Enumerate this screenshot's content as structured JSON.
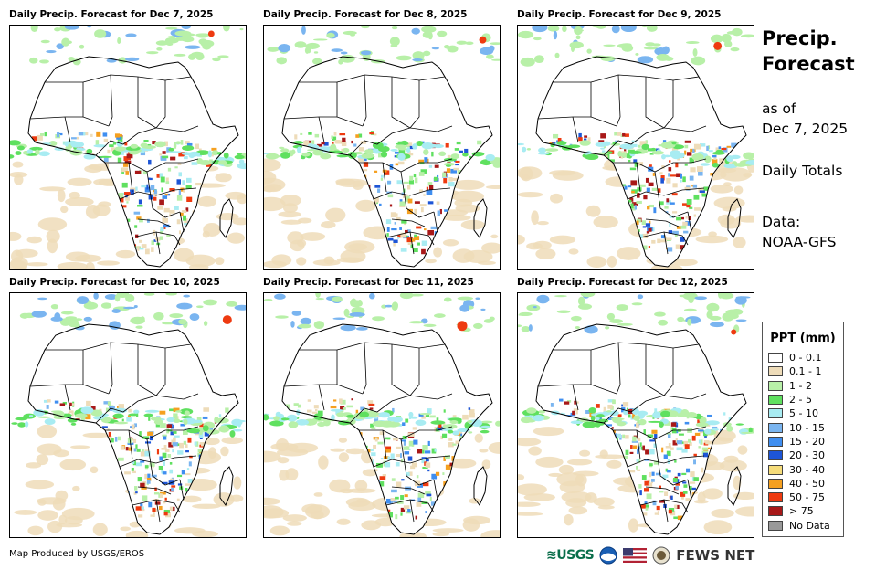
{
  "panels": [
    {
      "title": "Daily Precip. Forecast for Dec 7, 2025"
    },
    {
      "title": "Daily Precip. Forecast for Dec 8, 2025"
    },
    {
      "title": "Daily Precip. Forecast for Dec 9, 2025"
    },
    {
      "title": "Daily Precip. Forecast for Dec 10, 2025"
    },
    {
      "title": "Daily Precip. Forecast for Dec 11, 2025"
    },
    {
      "title": "Daily Precip. Forecast for Dec 12, 2025"
    }
  ],
  "side": {
    "title_line1": "Precip.",
    "title_line2": "Forecast",
    "asof_line1": "as of",
    "asof_line2": "Dec 7, 2025",
    "totals": "Daily Totals",
    "data_line1": "Data:",
    "data_line2": "NOAA-GFS"
  },
  "legend": {
    "title": "PPT (mm)",
    "items": [
      {
        "label": "0 - 0.1",
        "color": "#ffffff"
      },
      {
        "label": "0.1 - 1",
        "color": "#eedcb9"
      },
      {
        "label": "1 - 2",
        "color": "#b8f0a8"
      },
      {
        "label": "2 - 5",
        "color": "#5fe05f"
      },
      {
        "label": "5 - 10",
        "color": "#a8ecf2"
      },
      {
        "label": "10 - 15",
        "color": "#7ab5f0"
      },
      {
        "label": "15 - 20",
        "color": "#3f8ef0"
      },
      {
        "label": "20 - 30",
        "color": "#1d55d6"
      },
      {
        "label": "30 - 40",
        "color": "#f5dc7a"
      },
      {
        "label": "40 - 50",
        "color": "#f5a020"
      },
      {
        "label": "50 - 75",
        "color": "#ee3a10"
      },
      {
        "label": "> 75",
        "color": "#a81818"
      },
      {
        "label": "No Data",
        "color": "#999999"
      }
    ]
  },
  "footer": {
    "credit": "Map Produced by USGS/EROS"
  },
  "logos": {
    "usgs": "≋USGS",
    "fews": "FEWS NET"
  }
}
